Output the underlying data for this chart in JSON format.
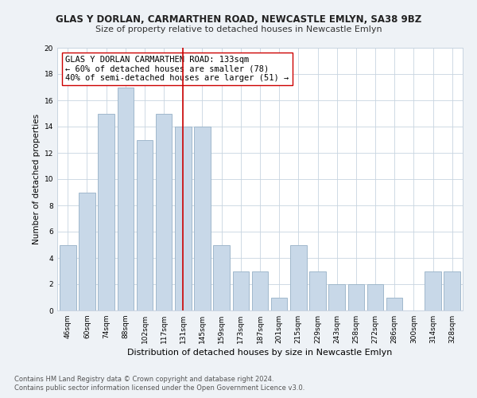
{
  "title": "GLAS Y DORLAN, CARMARTHEN ROAD, NEWCASTLE EMLYN, SA38 9BZ",
  "subtitle": "Size of property relative to detached houses in Newcastle Emlyn",
  "xlabel": "Distribution of detached houses by size in Newcastle Emlyn",
  "ylabel": "Number of detached properties",
  "bar_labels": [
    "46sqm",
    "60sqm",
    "74sqm",
    "88sqm",
    "102sqm",
    "117sqm",
    "131sqm",
    "145sqm",
    "159sqm",
    "173sqm",
    "187sqm",
    "201sqm",
    "215sqm",
    "229sqm",
    "243sqm",
    "258sqm",
    "272sqm",
    "286sqm",
    "300sqm",
    "314sqm",
    "328sqm"
  ],
  "bar_values": [
    5,
    9,
    15,
    17,
    13,
    15,
    14,
    14,
    5,
    3,
    3,
    1,
    5,
    3,
    2,
    2,
    2,
    1,
    0,
    3,
    3
  ],
  "bar_color": "#c8d8e8",
  "bar_edgecolor": "#a0b8cc",
  "vline_index": 6,
  "vline_color": "#cc0000",
  "ylim": [
    0,
    20
  ],
  "yticks": [
    0,
    2,
    4,
    6,
    8,
    10,
    12,
    14,
    16,
    18,
    20
  ],
  "annotation_title": "GLAS Y DORLAN CARMARTHEN ROAD: 133sqm",
  "annotation_line1": "← 60% of detached houses are smaller (78)",
  "annotation_line2": "40% of semi-detached houses are larger (51) →",
  "footer1": "Contains HM Land Registry data © Crown copyright and database right 2024.",
  "footer2": "Contains public sector information licensed under the Open Government Licence v3.0.",
  "background_color": "#eef2f6",
  "plot_bg_color": "#ffffff",
  "grid_color": "#c8d4e0",
  "title_fontsize": 8.5,
  "subtitle_fontsize": 8,
  "xlabel_fontsize": 8,
  "ylabel_fontsize": 7.5,
  "tick_fontsize": 6.5,
  "annotation_fontsize": 7.5,
  "footer_fontsize": 6
}
